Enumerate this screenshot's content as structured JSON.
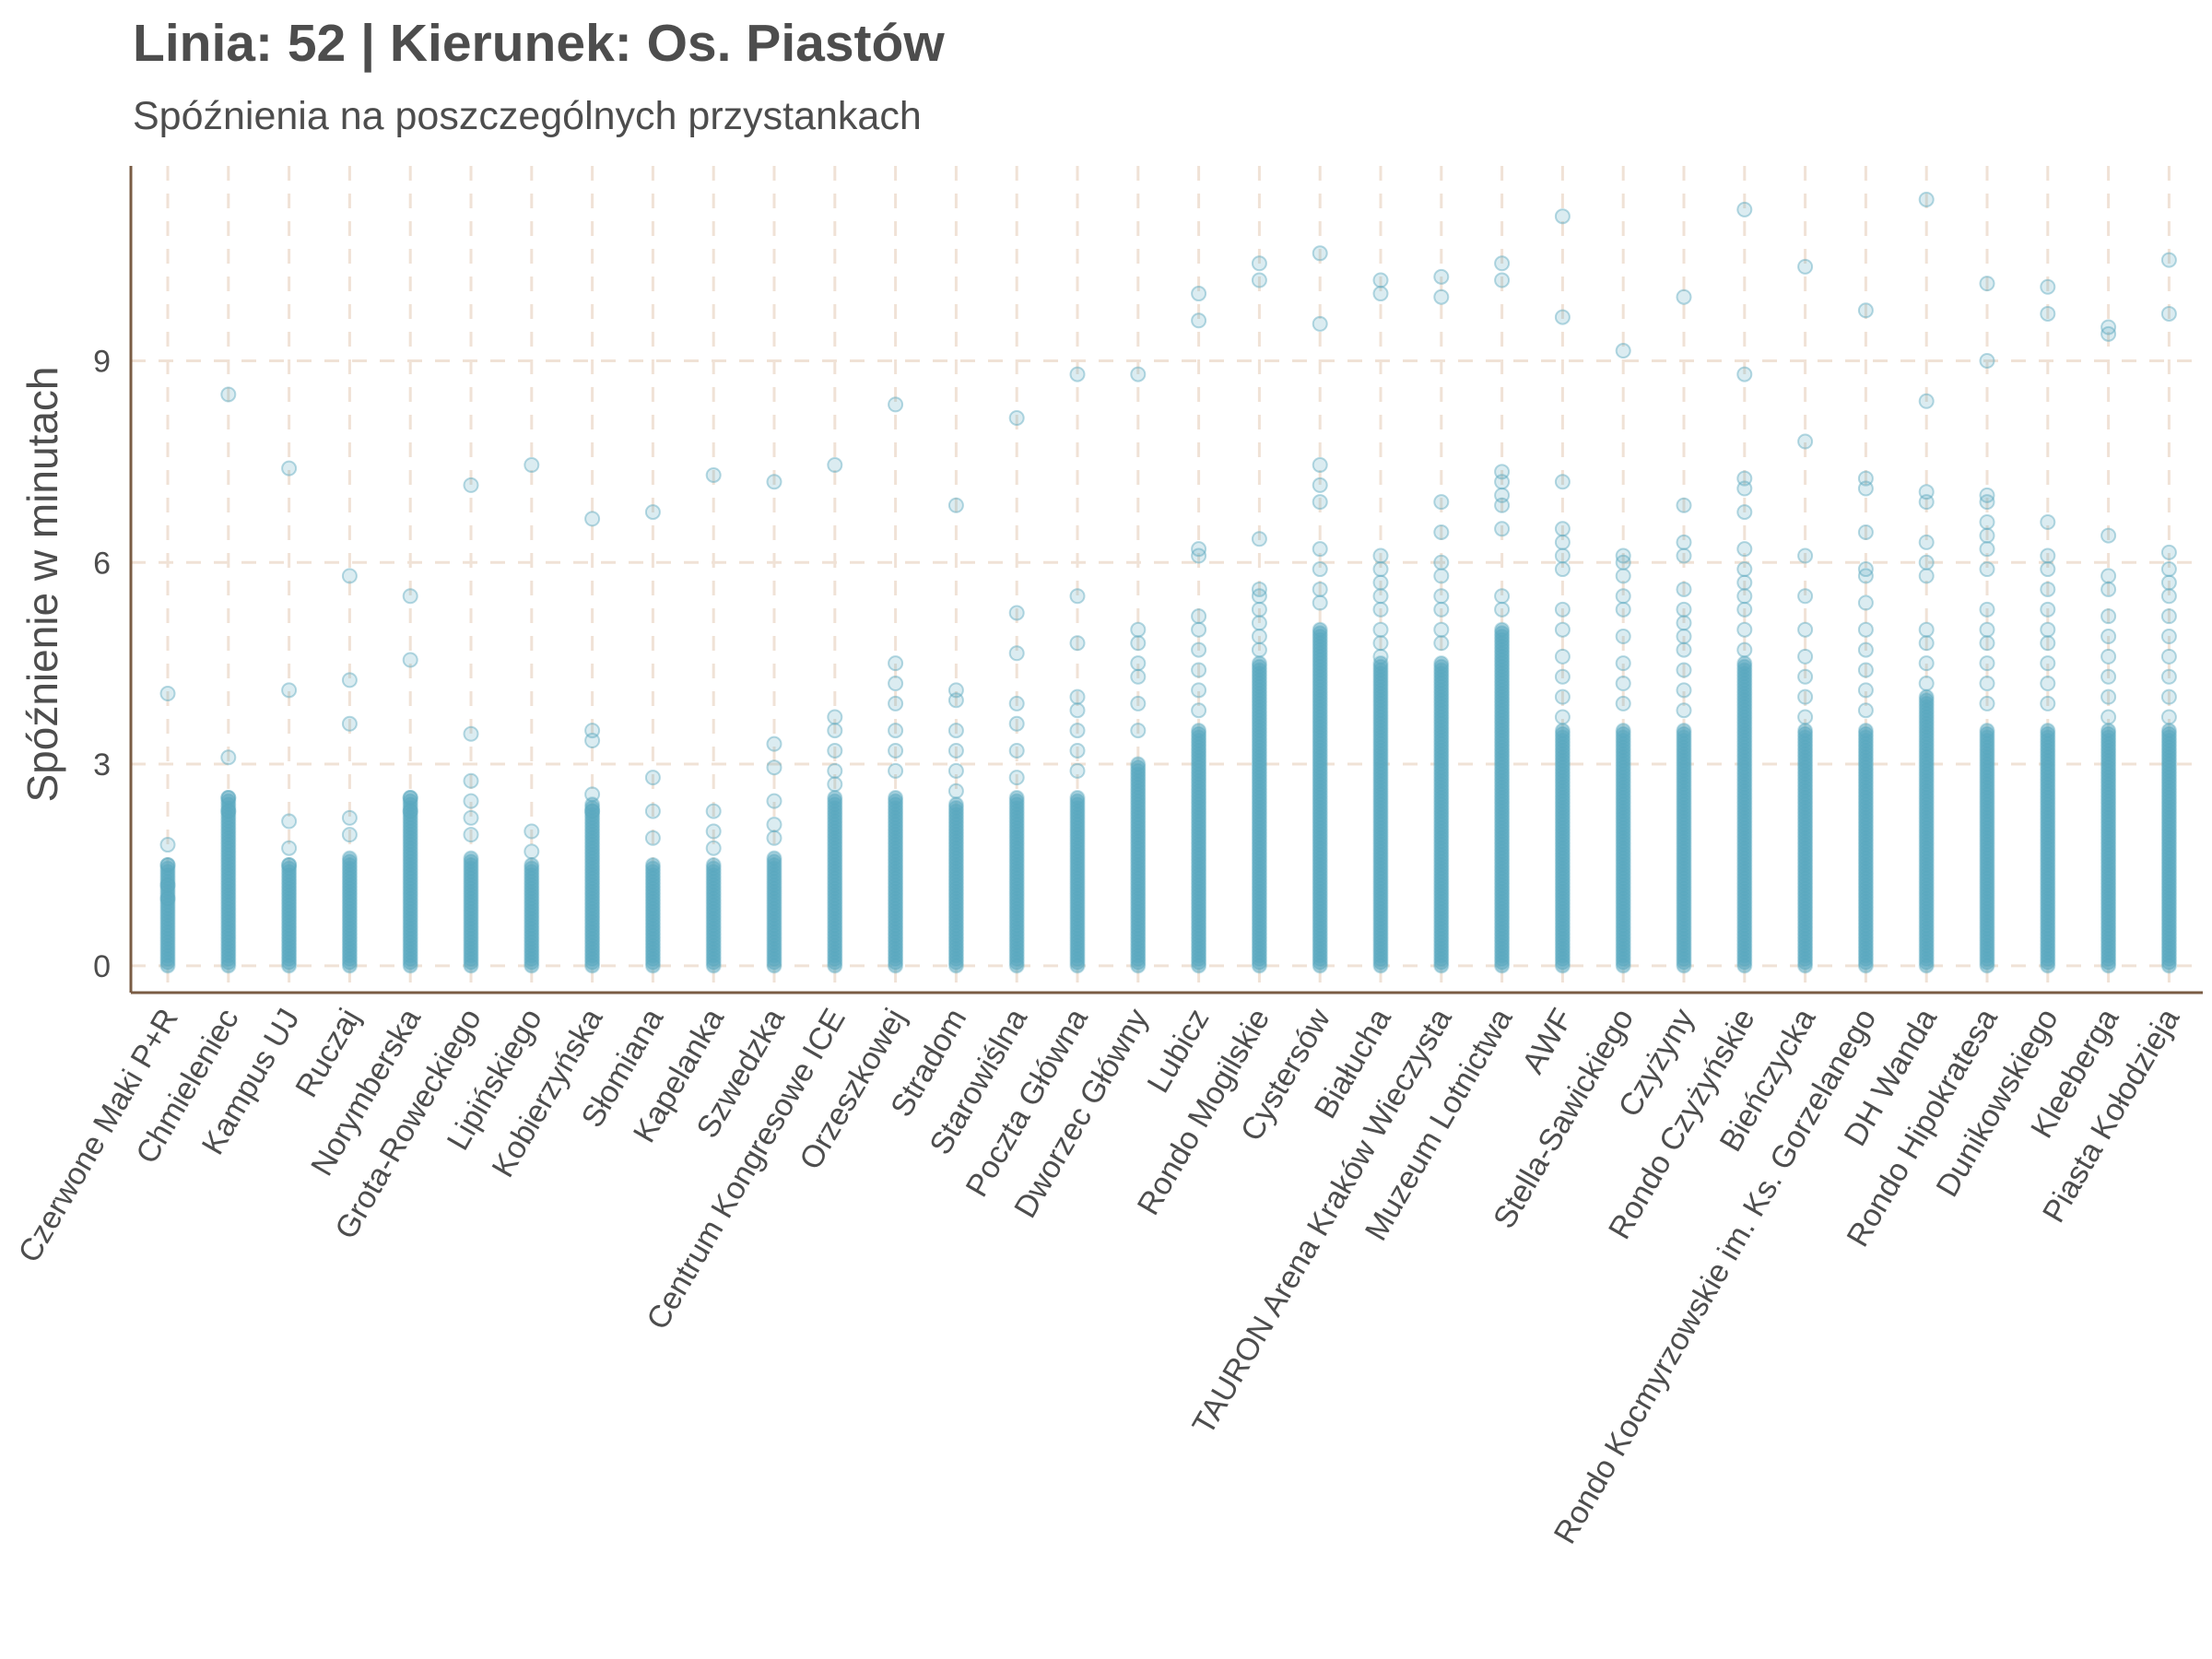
{
  "chart_data": {
    "type": "scatter",
    "title": "Linia: 52 | Kierunek: Os. Piastów",
    "subtitle": "Spóźnienia na poszczególnych przystankach",
    "xlabel": "",
    "ylabel": "Spóźnienie w minutach",
    "ylim": [
      -0.4,
      11.9
    ],
    "yticks": [
      0,
      3,
      6,
      9
    ],
    "grid": "dashed, vertical and major horizontal",
    "colors": {
      "point": "#5aa8bf",
      "grid": "#f0e2d6",
      "axis": "#7a5c44",
      "text": "#4d4d4d"
    },
    "categories": [
      "Czerwone Maki P+R",
      "Chmieleniec",
      "Kampus UJ",
      "Ruczaj",
      "Norymberska",
      "Grota-Roweckiego",
      "Lipińskiego",
      "Kobierzyńska",
      "Słomiana",
      "Kapelanka",
      "Szwedzka",
      "Centrum Kongresowe ICE",
      "Orzeszkowej",
      "Stradom",
      "Starowiślna",
      "Poczta Główna",
      "Dworzec Główny",
      "Lubicz",
      "Rondo Mogilskie",
      "Cystersów",
      "Białucha",
      "TAURON Arena Kraków Wieczysta",
      "Muzeum Lotnictwa",
      "AWF",
      "Stella-Sawickiego",
      "Czyżyny",
      "Rondo Czyżyńskie",
      "Bieńczycka",
      "Rondo Kocmyrzowskie im. Ks. Gorzelanego",
      "DH Wanda",
      "Rondo Hipokratesa",
      "Dunikowskiego",
      "Kleeberga",
      "Piasta Kołodzieja"
    ],
    "series": [
      {
        "dense_max": [
          1.5,
          2.5,
          1.5,
          1.6,
          2.5,
          1.6,
          1.5,
          2.4,
          1.5,
          1.5,
          1.6,
          2.5,
          2.5,
          2.4,
          2.5,
          2.5,
          3.0,
          3.5,
          4.5,
          5.0,
          4.5,
          4.5,
          5.0,
          3.5,
          3.5,
          3.5,
          4.5,
          3.5,
          3.5,
          4.0,
          3.5,
          3.5,
          3.5,
          3.5
        ]
      },
      {
        "outliers": [
          [
            4.05,
            1.8,
            1.5,
            1.2,
            1.0
          ],
          [
            8.5,
            3.1,
            2.5,
            2.3
          ],
          [
            7.4,
            4.1,
            2.15,
            1.75,
            1.5
          ],
          [
            5.8,
            4.25,
            3.6,
            2.2,
            1.95
          ],
          [
            5.5,
            4.55,
            2.5,
            2.3
          ],
          [
            7.15,
            3.45,
            2.75,
            2.45,
            2.2,
            1.95
          ],
          [
            7.45,
            2.0,
            1.7
          ],
          [
            6.65,
            3.5,
            3.35,
            2.55,
            2.3
          ],
          [
            6.75,
            2.8,
            2.3,
            1.9
          ],
          [
            7.3,
            2.3,
            2.0,
            1.75
          ],
          [
            7.2,
            3.3,
            2.95,
            2.45,
            2.1,
            1.9
          ],
          [
            7.45,
            3.7,
            3.5,
            3.2,
            2.9,
            2.7
          ],
          [
            8.35,
            4.5,
            4.2,
            3.9,
            3.5,
            3.2,
            2.9
          ],
          [
            6.85,
            4.1,
            3.95,
            3.5,
            3.2,
            2.9,
            2.6
          ],
          [
            8.15,
            5.25,
            4.65,
            3.9,
            3.6,
            3.2,
            2.8
          ],
          [
            8.8,
            5.5,
            4.8,
            4.0,
            3.8,
            3.5,
            3.2,
            2.9
          ],
          [
            8.8,
            5.0,
            4.8,
            4.5,
            4.3,
            3.9,
            3.5
          ],
          [
            10.0,
            9.6,
            6.2,
            6.1,
            5.2,
            5.0,
            4.7,
            4.4,
            4.1,
            3.8
          ],
          [
            10.45,
            10.2,
            6.35,
            5.6,
            5.5,
            5.3,
            5.1,
            4.9,
            4.7
          ],
          [
            10.6,
            9.55,
            7.45,
            7.15,
            6.9,
            6.2,
            5.9,
            5.6,
            5.4
          ],
          [
            10.2,
            10.0,
            6.1,
            5.9,
            5.7,
            5.5,
            5.3,
            5.0,
            4.8,
            4.6
          ],
          [
            10.25,
            9.95,
            6.9,
            6.45,
            6.0,
            5.8,
            5.5,
            5.3,
            5.0,
            4.8
          ],
          [
            10.45,
            10.2,
            7.35,
            7.2,
            7.0,
            6.85,
            6.5,
            5.5,
            5.3
          ],
          [
            11.15,
            9.65,
            7.2,
            6.5,
            6.3,
            6.1,
            5.9,
            5.3,
            5.0,
            4.6,
            4.3,
            4.0,
            3.7
          ],
          [
            9.15,
            6.1,
            6.0,
            5.8,
            5.5,
            5.3,
            4.9,
            4.5,
            4.2,
            3.9
          ],
          [
            9.95,
            6.85,
            6.3,
            6.1,
            5.6,
            5.3,
            5.1,
            4.9,
            4.7,
            4.4,
            4.1,
            3.8
          ],
          [
            11.25,
            8.8,
            7.25,
            7.1,
            6.75,
            6.2,
            5.9,
            5.7,
            5.5,
            5.3,
            5.0,
            4.7
          ],
          [
            10.4,
            7.8,
            6.1,
            5.5,
            5.0,
            4.6,
            4.3,
            4.0,
            3.7
          ],
          [
            9.75,
            7.25,
            7.1,
            6.45,
            5.9,
            5.8,
            5.4,
            5.0,
            4.7,
            4.4,
            4.1,
            3.8
          ],
          [
            11.4,
            8.4,
            7.05,
            6.9,
            6.3,
            6.0,
            5.8,
            5.0,
            4.8,
            4.5,
            4.2
          ],
          [
            10.15,
            9.0,
            7.0,
            6.9,
            6.6,
            6.4,
            6.2,
            5.9,
            5.3,
            5.0,
            4.8,
            4.5,
            4.2,
            3.9
          ],
          [
            10.1,
            9.7,
            6.6,
            6.1,
            5.9,
            5.6,
            5.3,
            5.0,
            4.8,
            4.5,
            4.2,
            3.9
          ],
          [
            9.5,
            9.4,
            6.4,
            5.8,
            5.6,
            5.2,
            4.9,
            4.6,
            4.3,
            4.0,
            3.7
          ],
          [
            10.5,
            9.7,
            6.15,
            5.9,
            5.7,
            5.5,
            5.2,
            4.9,
            4.6,
            4.3,
            4.0,
            3.7
          ]
        ]
      }
    ]
  }
}
